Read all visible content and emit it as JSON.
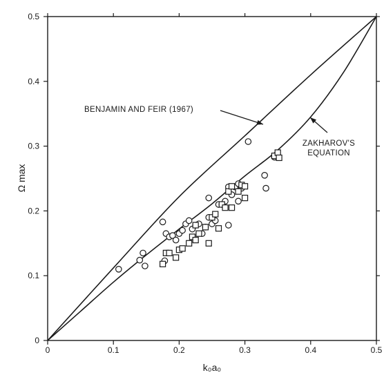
{
  "chart_data": {
    "type": "scatter",
    "xlabel": "k₀a₀",
    "ylabel": "Ω max",
    "xlim": [
      0,
      0.5
    ],
    "ylim": [
      0,
      0.5
    ],
    "x_ticks": [
      "0",
      "0.1",
      "0.2",
      "0.3",
      "0.4",
      "0.5"
    ],
    "y_ticks": [
      "0",
      "0.1",
      "0.2",
      "0.3",
      "0.4",
      "0.5"
    ],
    "grid": false,
    "annotations": [
      {
        "lines": [
          "BENJAMIN AND FEIR (1967)"
        ],
        "points_to": "benjamin-feir"
      },
      {
        "lines": [
          "ZAKHAROV'S",
          "EQUATION"
        ],
        "points_to": "zakharov"
      }
    ],
    "curves": [
      {
        "id": "benjamin-feir",
        "x": [
          0,
          0.1,
          0.2,
          0.3,
          0.4,
          0.5
        ],
        "y": [
          0,
          0.112,
          0.222,
          0.316,
          0.41,
          0.5
        ]
      },
      {
        "id": "zakharov",
        "x": [
          0,
          0.05,
          0.1,
          0.15,
          0.2,
          0.25,
          0.3,
          0.35,
          0.4,
          0.45,
          0.5
        ],
        "y": [
          0,
          0.045,
          0.09,
          0.132,
          0.172,
          0.211,
          0.254,
          0.294,
          0.345,
          0.414,
          0.5
        ]
      }
    ],
    "series": [
      {
        "marker": "circle",
        "x": [
          0.108,
          0.14,
          0.145,
          0.148,
          0.175,
          0.178,
          0.18,
          0.185,
          0.19,
          0.195,
          0.2,
          0.205,
          0.21,
          0.215,
          0.22,
          0.225,
          0.23,
          0.235,
          0.24,
          0.245,
          0.245,
          0.25,
          0.255,
          0.26,
          0.265,
          0.27,
          0.275,
          0.275,
          0.28,
          0.285,
          0.29,
          0.29,
          0.295,
          0.305,
          0.33,
          0.332,
          0.345
        ],
        "y": [
          0.11,
          0.124,
          0.135,
          0.115,
          0.183,
          0.123,
          0.165,
          0.16,
          0.162,
          0.155,
          0.165,
          0.17,
          0.18,
          0.185,
          0.172,
          0.178,
          0.18,
          0.165,
          0.175,
          0.19,
          0.22,
          0.18,
          0.185,
          0.21,
          0.21,
          0.215,
          0.237,
          0.178,
          0.225,
          0.237,
          0.215,
          0.242,
          0.235,
          0.307,
          0.255,
          0.235,
          0.283
        ]
      },
      {
        "marker": "square",
        "x": [
          0.175,
          0.18,
          0.185,
          0.195,
          0.2,
          0.205,
          0.215,
          0.22,
          0.225,
          0.225,
          0.23,
          0.24,
          0.245,
          0.25,
          0.255,
          0.26,
          0.265,
          0.27,
          0.275,
          0.28,
          0.28,
          0.29,
          0.295,
          0.3,
          0.3,
          0.345,
          0.35,
          0.352
        ],
        "y": [
          0.118,
          0.135,
          0.135,
          0.128,
          0.14,
          0.142,
          0.15,
          0.16,
          0.155,
          0.178,
          0.165,
          0.175,
          0.15,
          0.19,
          0.195,
          0.173,
          0.21,
          0.205,
          0.23,
          0.205,
          0.238,
          0.23,
          0.24,
          0.22,
          0.238,
          0.285,
          0.29,
          0.282
        ]
      }
    ]
  }
}
